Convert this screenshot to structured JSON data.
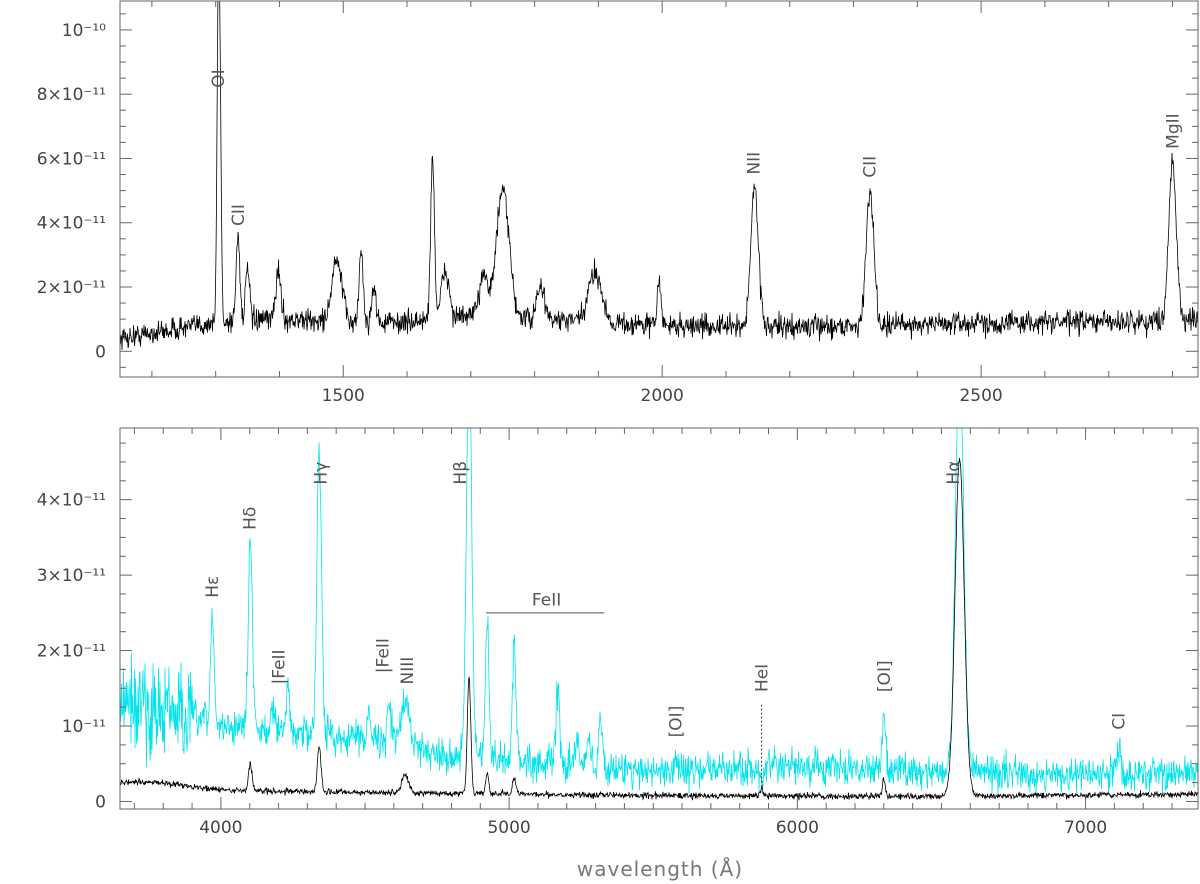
{
  "chart_data": [
    {
      "type": "line",
      "panel": "top",
      "xlim": [
        1150,
        2840
      ],
      "ylim": [
        -8e-12,
        1.09e-10
      ],
      "xticks": [
        {
          "v": 1500,
          "label": "1500"
        },
        {
          "v": 2000,
          "label": "2000"
        },
        {
          "v": 2500,
          "label": "2500"
        }
      ],
      "yticks": [
        {
          "v": 0,
          "label": "0"
        },
        {
          "v": 2e-11,
          "label": "2×10⁻¹¹"
        },
        {
          "v": 4e-11,
          "label": "4×10⁻¹¹"
        },
        {
          "v": 6e-11,
          "label": "6×10⁻¹¹"
        },
        {
          "v": 8e-11,
          "label": "8×10⁻¹¹"
        },
        {
          "v": 1e-10,
          "label": "10⁻¹⁰"
        }
      ],
      "series": [
        {
          "color": "#000000",
          "continuum": [
            [
              1150,
              4e-12
            ],
            [
              1300,
              9e-12
            ],
            [
              1400,
              1e-11
            ],
            [
              1500,
              9e-12
            ],
            [
              1600,
              9e-12
            ],
            [
              1700,
              1.1e-11
            ],
            [
              1800,
              1e-11
            ],
            [
              1900,
              9e-12
            ],
            [
              2000,
              8e-12
            ],
            [
              2200,
              7.5e-12
            ],
            [
              2400,
              8.5e-12
            ],
            [
              2600,
              9e-12
            ],
            [
              2840,
              9.5e-12
            ]
          ],
          "peaks": [
            {
              "x": 1304,
              "y": 1.01e-10,
              "w": 2
            },
            {
              "x": 1307,
              "y": 6.5e-11,
              "w": 2
            },
            {
              "x": 1335,
              "y": 3.6e-11,
              "w": 3
            },
            {
              "x": 1350,
              "y": 2.6e-11,
              "w": 3
            },
            {
              "x": 1398,
              "y": 2.5e-11,
              "w": 4
            },
            {
              "x": 1490,
              "y": 2.8e-11,
              "w": 8
            },
            {
              "x": 1528,
              "y": 3.2e-11,
              "w": 3
            },
            {
              "x": 1548,
              "y": 2.1e-11,
              "w": 3
            },
            {
              "x": 1640,
              "y": 6e-11,
              "w": 3
            },
            {
              "x": 1660,
              "y": 2.5e-11,
              "w": 6
            },
            {
              "x": 1720,
              "y": 2.5e-11,
              "w": 6
            },
            {
              "x": 1750,
              "y": 5e-11,
              "w": 10
            },
            {
              "x": 1810,
              "y": 2e-11,
              "w": 6
            },
            {
              "x": 1895,
              "y": 2.5e-11,
              "w": 10
            },
            {
              "x": 1995,
              "y": 2.2e-11,
              "w": 3
            },
            {
              "x": 2145,
              "y": 5.1e-11,
              "w": 6
            },
            {
              "x": 2326,
              "y": 5e-11,
              "w": 6
            },
            {
              "x": 2800,
              "y": 5.9e-11,
              "w": 6
            }
          ],
          "noise": 3.5e-12
        }
      ],
      "annotations": [
        {
          "text": "OI",
          "x": 1304,
          "y": 8.2e-11
        },
        {
          "text": "CII",
          "x": 1335,
          "y": 3.9e-11
        },
        {
          "text": "NII",
          "x": 2143,
          "y": 5.5e-11
        },
        {
          "text": "CII",
          "x": 2325,
          "y": 5.4e-11
        },
        {
          "text": "MgII",
          "x": 2800,
          "y": 6.3e-11
        }
      ]
    },
    {
      "type": "line",
      "panel": "bottom",
      "xlim": [
        3650,
        7390
      ],
      "ylim": [
        -1e-12,
        4.95e-11
      ],
      "xlabel": "wavelength (Å)",
      "xticks": [
        {
          "v": 4000,
          "label": "4000"
        },
        {
          "v": 5000,
          "label": "5000"
        },
        {
          "v": 6000,
          "label": "6000"
        },
        {
          "v": 7000,
          "label": "7000"
        }
      ],
      "yticks": [
        {
          "v": 0,
          "label": "0"
        },
        {
          "v": 1e-11,
          "label": "10⁻¹¹"
        },
        {
          "v": 2e-11,
          "label": "2×10⁻¹¹"
        },
        {
          "v": 3e-11,
          "label": "3×10⁻¹¹"
        },
        {
          "v": 4e-11,
          "label": "4×10⁻¹¹"
        }
      ],
      "series": [
        {
          "color": "#00e5ee",
          "continuum": [
            [
              3650,
              1.3e-11
            ],
            [
              3800,
              1.2e-11
            ],
            [
              4000,
              1e-11
            ],
            [
              4300,
              9e-12
            ],
            [
              4600,
              8e-12
            ],
            [
              4800,
              6e-12
            ],
            [
              5000,
              5.5e-12
            ],
            [
              5500,
              4e-12
            ],
            [
              6000,
              4.5e-12
            ],
            [
              6500,
              4e-12
            ],
            [
              7000,
              3.5e-12
            ],
            [
              7390,
              3.8e-12
            ]
          ],
          "peaks": [
            {
              "x": 3970,
              "y": 2.5e-11,
              "w": 6
            },
            {
              "x": 4102,
              "y": 3.5e-11,
              "w": 7
            },
            {
              "x": 4178,
              "y": 1.3e-11,
              "w": 6
            },
            {
              "x": 4233,
              "y": 1.5e-11,
              "w": 6
            },
            {
              "x": 4341,
              "y": 4.7e-11,
              "w": 8
            },
            {
              "x": 4515,
              "y": 1.3e-11,
              "w": 6
            },
            {
              "x": 4584,
              "y": 1.3e-11,
              "w": 6
            },
            {
              "x": 4640,
              "y": 1.3e-11,
              "w": 15
            },
            {
              "x": 4861,
              "y": 6e-11,
              "w": 9
            },
            {
              "x": 4924,
              "y": 2.4e-11,
              "w": 6
            },
            {
              "x": 5018,
              "y": 2.1e-11,
              "w": 6
            },
            {
              "x": 5169,
              "y": 1.5e-11,
              "w": 6
            },
            {
              "x": 5235,
              "y": 8e-12,
              "w": 6
            },
            {
              "x": 5276,
              "y": 9e-12,
              "w": 6
            },
            {
              "x": 5317,
              "y": 1.1e-11,
              "w": 6
            },
            {
              "x": 5577,
              "y": 6.5e-12,
              "w": 5
            },
            {
              "x": 5876,
              "y": 3e-12,
              "w": 5
            },
            {
              "x": 6300,
              "y": 1.2e-11,
              "w": 6
            },
            {
              "x": 6563,
              "y": 6e-11,
              "w": 14
            },
            {
              "x": 6725,
              "y": 4e-12,
              "w": 8
            },
            {
              "x": 7115,
              "y": 7e-12,
              "w": 8
            }
          ],
          "noise": 2.2e-12
        },
        {
          "color": "#000000",
          "continuum": [
            [
              3650,
              2.5e-12
            ],
            [
              3800,
              2.5e-12
            ],
            [
              4000,
              1.5e-12
            ],
            [
              4500,
              1.2e-12
            ],
            [
              5000,
              1e-12
            ],
            [
              5500,
              8e-13
            ],
            [
              6000,
              7e-13
            ],
            [
              6500,
              7e-13
            ],
            [
              7000,
              8e-13
            ],
            [
              7390,
              1e-12
            ]
          ],
          "peaks": [
            {
              "x": 4102,
              "y": 5e-12,
              "w": 6
            },
            {
              "x": 4341,
              "y": 7.5e-12,
              "w": 6
            },
            {
              "x": 4640,
              "y": 3.5e-12,
              "w": 12
            },
            {
              "x": 4861,
              "y": 1.65e-11,
              "w": 6
            },
            {
              "x": 4924,
              "y": 3.5e-12,
              "w": 5
            },
            {
              "x": 5018,
              "y": 3e-12,
              "w": 6
            },
            {
              "x": 5876,
              "y": 1.8e-12,
              "w": 5
            },
            {
              "x": 6300,
              "y": 3e-12,
              "w": 5
            },
            {
              "x": 6563,
              "y": 4.55e-11,
              "w": 16
            },
            {
              "x": 7065,
              "y": 1e-12,
              "w": 6
            }
          ],
          "noise": 4e-13
        }
      ],
      "annotations": [
        {
          "text": "Hε",
          "x": 3970,
          "y": 2.7e-11
        },
        {
          "text": "Hδ",
          "x": 4100,
          "y": 3.6e-11
        },
        {
          "text": "|FeII",
          "x": 4200,
          "y": 1.55e-11
        },
        {
          "text": "Hγ",
          "x": 4345,
          "y": 4.2e-11
        },
        {
          "text": "|FeII",
          "x": 4560,
          "y": 1.7e-11
        },
        {
          "text": "NIII",
          "x": 4645,
          "y": 1.55e-11
        },
        {
          "text": "Hβ",
          "x": 4830,
          "y": 4.2e-11
        },
        {
          "text": "FeII",
          "x": 5130,
          "y": 2.6e-11
        },
        {
          "text": "[OI]",
          "x": 5577,
          "y": 8.5e-12
        },
        {
          "text": "HeI",
          "x": 5876,
          "y": 1.45e-11
        },
        {
          "text": "[OI]",
          "x": 6300,
          "y": 1.45e-11
        },
        {
          "text": "Hα",
          "x": 6540,
          "y": 4.2e-11
        },
        {
          "text": "CI",
          "x": 7115,
          "y": 9.5e-12
        }
      ],
      "segments": [
        {
          "x1": 4920,
          "x2": 5330,
          "y": 2.5e-11
        }
      ],
      "vlines": [
        {
          "x": 5876,
          "y1": 2.5e-12,
          "y2": 1.3e-11
        }
      ]
    }
  ]
}
